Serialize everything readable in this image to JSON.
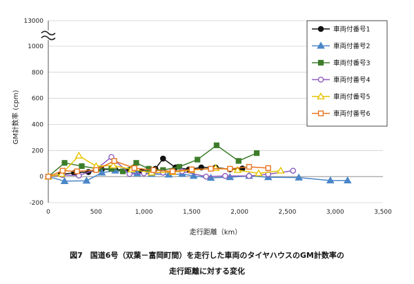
{
  "chart_data": {
    "type": "line",
    "xlabel": "走行距離（km）",
    "ylabel": "GM計数率 (cpm)",
    "xlim": [
      0,
      3500
    ],
    "ylim": [
      -200,
      1000
    ],
    "y_break_top_label": "13000",
    "x_ticks": [
      "0",
      "500",
      "1,000",
      "1,500",
      "2,000",
      "2,500",
      "3,000",
      "3,500"
    ],
    "y_ticks": [
      "-200",
      "0",
      "200",
      "400",
      "600",
      "800",
      "1000"
    ],
    "grid": "horizontal",
    "legend_position": "top-right",
    "series": [
      {
        "name": "車両付番号1",
        "color": "#111111",
        "marker": "circle-filled",
        "x": [
          0,
          130,
          270,
          420,
          560,
          700,
          840,
          980,
          1120,
          1200,
          1330,
          1470,
          1600,
          1750,
          1900,
          2030
        ],
        "y": [
          0,
          18,
          28,
          35,
          55,
          55,
          48,
          40,
          60,
          138,
          70,
          55,
          70,
          70,
          55,
          62
        ]
      },
      {
        "name": "車両付番号2",
        "color": "#4a86c8",
        "marker": "triangle-filled",
        "x": [
          0,
          170,
          400,
          560,
          700,
          930,
          1080,
          1260,
          1400,
          1520,
          1700,
          1900,
          2100,
          2300,
          2620,
          2950,
          3130
        ],
        "y": [
          0,
          -35,
          -32,
          30,
          45,
          25,
          20,
          15,
          20,
          5,
          -10,
          -5,
          5,
          -5,
          -8,
          -30,
          -30
        ]
      },
      {
        "name": "車両付番号3",
        "color": "#3d7d2a",
        "marker": "square-filled",
        "x": [
          0,
          170,
          350,
          520,
          660,
          780,
          920,
          1050,
          1200,
          1370,
          1560,
          1760,
          1990,
          2180
        ],
        "y": [
          0,
          105,
          80,
          60,
          60,
          40,
          105,
          60,
          50,
          75,
          130,
          240,
          120,
          180
        ]
      },
      {
        "name": "車両付番号4",
        "color": "#8e5cbf",
        "marker": "circle-open",
        "x": [
          0,
          150,
          320,
          500,
          660,
          850,
          1000,
          1200,
          1400,
          1650,
          1850,
          2100,
          2300,
          2560
        ],
        "y": [
          0,
          12,
          8,
          55,
          150,
          20,
          25,
          30,
          40,
          0,
          5,
          5,
          18,
          45
        ]
      },
      {
        "name": "車両付番号5",
        "color": "#e8c400",
        "marker": "triangle-open",
        "x": [
          0,
          140,
          320,
          500,
          680,
          870,
          1080,
          1300,
          1500,
          1750,
          1980,
          2200,
          2430
        ],
        "y": [
          0,
          20,
          160,
          80,
          85,
          55,
          30,
          35,
          50,
          65,
          50,
          25,
          45
        ]
      },
      {
        "name": "車両付番号6",
        "color": "#e8731e",
        "marker": "square-open",
        "x": [
          0,
          150,
          300,
          500,
          690,
          900,
          1100,
          1300,
          1500,
          1700,
          1900,
          2100,
          2300
        ],
        "y": [
          0,
          45,
          40,
          50,
          120,
          65,
          50,
          40,
          55,
          60,
          60,
          75,
          65
        ]
      }
    ]
  },
  "caption": {
    "line1": "図7　国道6号（双葉－富岡町間）を走行した車両のタイヤハウスのGM計数率の",
    "line2": "走行距離に対する変化"
  }
}
